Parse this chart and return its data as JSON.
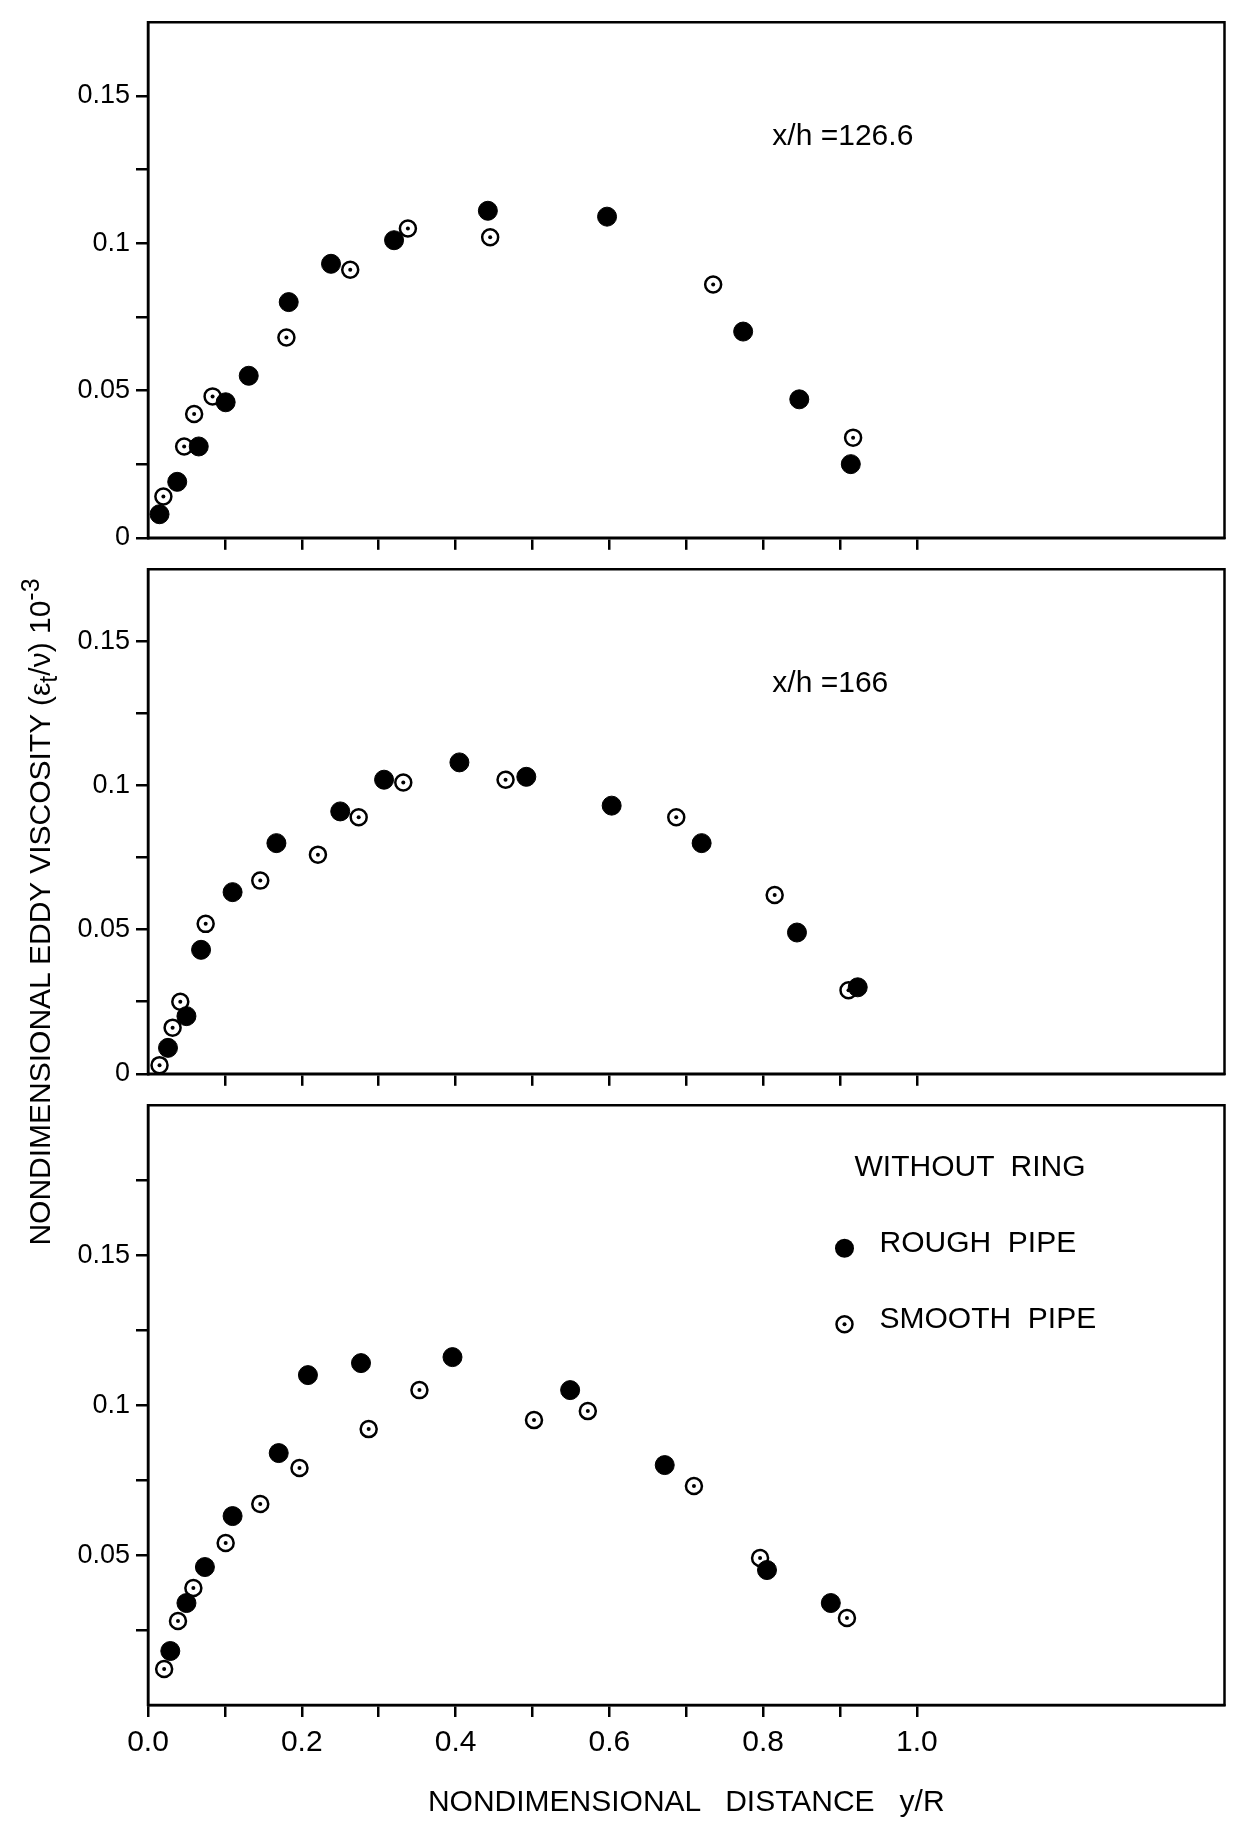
{
  "chart_data": [
    {
      "type": "scatter",
      "annotations": [
        "x/h =126.6"
      ],
      "xlim": [
        0,
        1.4
      ],
      "ylim": [
        0,
        0.175
      ],
      "marker": "circle",
      "tick_labels": "y",
      "xticks": [
        {
          "value": 0.1,
          "label": null
        },
        {
          "value": 0.2,
          "label": null
        },
        {
          "value": 0.3,
          "label": null
        },
        {
          "value": 0.4,
          "label": null
        },
        {
          "value": 0.5,
          "label": null
        },
        {
          "value": 0.6,
          "label": null
        },
        {
          "value": 0.7,
          "label": null
        },
        {
          "value": 0.8,
          "label": null
        },
        {
          "value": 0.9,
          "label": null
        },
        {
          "value": 1.0,
          "label": null
        }
      ],
      "yticks": [
        0,
        {
          "value": 0.025,
          "label": null
        },
        0.05,
        {
          "value": 0.075,
          "label": null
        },
        0.1,
        {
          "value": 0.125,
          "label": null
        },
        0.15
      ],
      "series": [
        {
          "color": "#000000",
          "x": [
            0.015,
            0.038,
            0.066,
            0.101,
            0.131,
            0.183,
            0.238,
            0.32,
            0.442,
            0.597,
            0.774,
            0.847,
            0.914
          ],
          "values": [
            0.008,
            0.019,
            0.031,
            0.046,
            0.055,
            0.08,
            0.093,
            0.101,
            0.111,
            0.109,
            0.07,
            0.047,
            0.025
          ]
        },
        {
          "color": "#000000",
          "x": [
            0.02,
            0.047,
            0.06,
            0.084,
            0.18,
            0.263,
            0.338,
            0.445,
            0.735,
            0.917
          ],
          "values": [
            0.014,
            0.031,
            0.042,
            0.048,
            0.068,
            0.091,
            0.105,
            0.102,
            0.086,
            0.034
          ]
        }
      ]
    },
    {
      "type": "scatter",
      "annotations": [
        "x/h =166"
      ],
      "ylabel": "NONDIMENSIONAL   EDDY VISCOSITY   (ε$_{t}$/ν) 10$^{-3}$",
      "xlim": [
        0,
        1.4
      ],
      "ylim": [
        0,
        0.175
      ],
      "marker": "circle",
      "tick_labels": "y",
      "xticks": [
        {
          "value": 0.1,
          "label": null
        },
        {
          "value": 0.2,
          "label": null
        },
        {
          "value": 0.3,
          "label": null
        },
        {
          "value": 0.4,
          "label": null
        },
        {
          "value": 0.5,
          "label": null
        },
        {
          "value": 0.6,
          "label": null
        },
        {
          "value": 0.7,
          "label": null
        },
        {
          "value": 0.8,
          "label": null
        },
        {
          "value": 0.9,
          "label": null
        },
        {
          "value": 1.0,
          "label": null
        }
      ],
      "yticks": [
        0,
        {
          "value": 0.025,
          "label": null
        },
        0.05,
        {
          "value": 0.075,
          "label": null
        },
        0.1,
        {
          "value": 0.125,
          "label": null
        },
        0.15
      ],
      "series": [
        {
          "color": "#000000",
          "x": [
            0.026,
            0.05,
            0.069,
            0.11,
            0.167,
            0.25,
            0.307,
            0.405,
            0.492,
            0.603,
            0.72,
            0.844,
            0.923
          ],
          "values": [
            0.009,
            0.02,
            0.043,
            0.063,
            0.08,
            0.091,
            0.102,
            0.108,
            0.103,
            0.093,
            0.08,
            0.049,
            0.03
          ]
        },
        {
          "color": "#000000",
          "x": [
            0.015,
            0.032,
            0.042,
            0.075,
            0.146,
            0.221,
            0.274,
            0.332,
            0.465,
            0.687,
            0.815,
            0.911
          ],
          "values": [
            0.003,
            0.016,
            0.025,
            0.052,
            0.067,
            0.076,
            0.089,
            0.101,
            0.102,
            0.089,
            0.062,
            0.029
          ]
        }
      ]
    },
    {
      "type": "scatter",
      "xlabel": "NONDIMENSIONAL   DISTANCE   y/R",
      "legend_title": "WITHOUT  RING",
      "legend": "top right",
      "xlim": [
        0,
        1.4
      ],
      "ylim": [
        0,
        0.2
      ],
      "marker": "circle",
      "xticks": [
        {
          "value": 0,
          "label": "0.0"
        },
        {
          "value": 0.1,
          "label": null
        },
        {
          "value": 0.2,
          "label": "0.2"
        },
        {
          "value": 0.3,
          "label": null
        },
        {
          "value": 0.4,
          "label": "0.4"
        },
        {
          "value": 0.5,
          "label": null
        },
        {
          "value": 0.6,
          "label": "0.6"
        },
        {
          "value": 0.7,
          "label": null
        },
        {
          "value": 0.8,
          "label": "0.8"
        },
        {
          "value": 0.9,
          "label": null
        },
        {
          "value": 1.0,
          "label": "1.0"
        }
      ],
      "yticks": [
        {
          "value": 0.025,
          "label": null
        },
        0.05,
        {
          "value": 0.075,
          "label": null
        },
        0.1,
        {
          "value": 0.125,
          "label": null
        },
        0.15,
        {
          "value": 0.175,
          "label": null
        }
      ],
      "series": [
        {
          "name": "ROUGH  PIPE",
          "color": "#000000",
          "x": [
            0.029,
            0.05,
            0.074,
            0.11,
            0.17,
            0.208,
            0.277,
            0.396,
            0.549,
            0.672,
            0.805,
            0.888
          ],
          "values": [
            0.018,
            0.034,
            0.046,
            0.063,
            0.084,
            0.11,
            0.114,
            0.116,
            0.105,
            0.08,
            0.045,
            0.034
          ]
        },
        {
          "name": "SMOOTH  PIPE",
          "color": "#000000",
          "x": [
            0.021,
            0.039,
            0.059,
            0.101,
            0.146,
            0.197,
            0.287,
            0.353,
            0.502,
            0.572,
            0.71,
            0.796,
            0.909
          ],
          "values": [
            0.012,
            0.028,
            0.039,
            0.054,
            0.067,
            0.079,
            0.092,
            0.105,
            0.095,
            0.098,
            0.073,
            0.049,
            0.029
          ]
        }
      ]
    }
  ]
}
